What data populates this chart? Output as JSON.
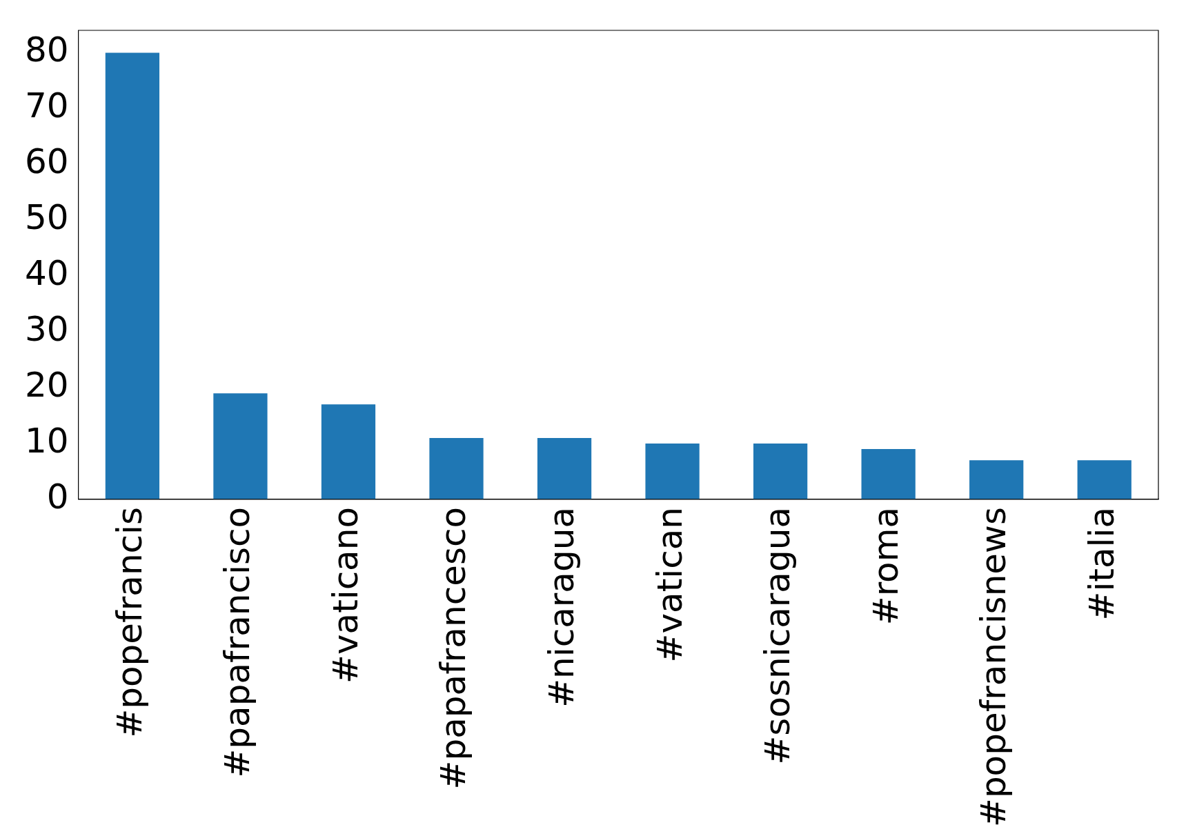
{
  "chart_data": {
    "type": "bar",
    "categories": [
      "#popefrancis",
      "#papafrancisco",
      "#vaticano",
      "#papafrancesco",
      "#nicaragua",
      "#vatican",
      "#sosnicaragua",
      "#roma",
      "#popefrancisnews",
      "#italia"
    ],
    "values": [
      80,
      19,
      17,
      11,
      11,
      10,
      10,
      9,
      7,
      7
    ],
    "color": "#1f77b4",
    "ylim": [
      0,
      84
    ],
    "yticks": [
      0,
      10,
      20,
      30,
      40,
      50,
      60,
      70,
      80
    ],
    "grid": false,
    "legend": false
  }
}
